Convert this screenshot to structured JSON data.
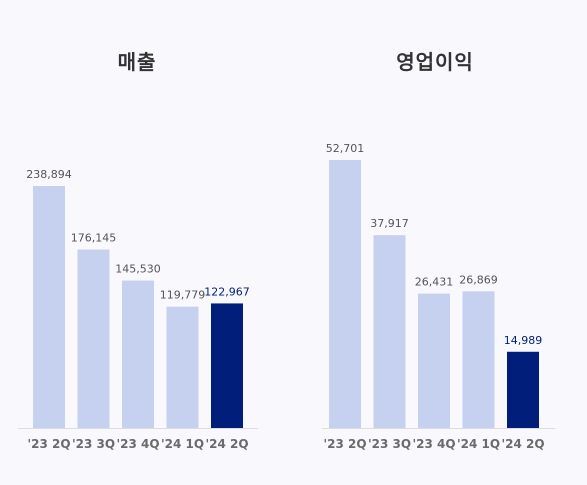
{
  "chart_data": [
    {
      "type": "bar",
      "title": "매출",
      "categories": [
        "'23 2Q",
        "'23 3Q",
        "'23 4Q",
        "'24 1Q",
        "'24 2Q"
      ],
      "values": [
        238894,
        176145,
        145530,
        119779,
        122967
      ],
      "value_labels": [
        "238,894",
        "176,145",
        "145,530",
        "119,779",
        "122,967"
      ],
      "highlight_index": 4,
      "colors": {
        "bar": "#c6d1f0",
        "highlight": "#001e7a",
        "label": "#555555",
        "highlight_label": "#001e7a"
      },
      "grid": false,
      "legend": "none"
    },
    {
      "type": "bar",
      "title": "영업이익",
      "categories": [
        "'23 2Q",
        "'23 3Q",
        "'23 4Q",
        "'24 1Q",
        "'24 2Q"
      ],
      "values": [
        52701,
        37917,
        26431,
        26869,
        14989
      ],
      "value_labels": [
        "52,701",
        "37,917",
        "26,431",
        "26,869",
        "14,989"
      ],
      "highlight_index": 4,
      "colors": {
        "bar": "#c6d1f0",
        "highlight": "#001e7a",
        "label": "#555555",
        "highlight_label": "#001e7a"
      },
      "grid": false,
      "legend": "none"
    }
  ]
}
